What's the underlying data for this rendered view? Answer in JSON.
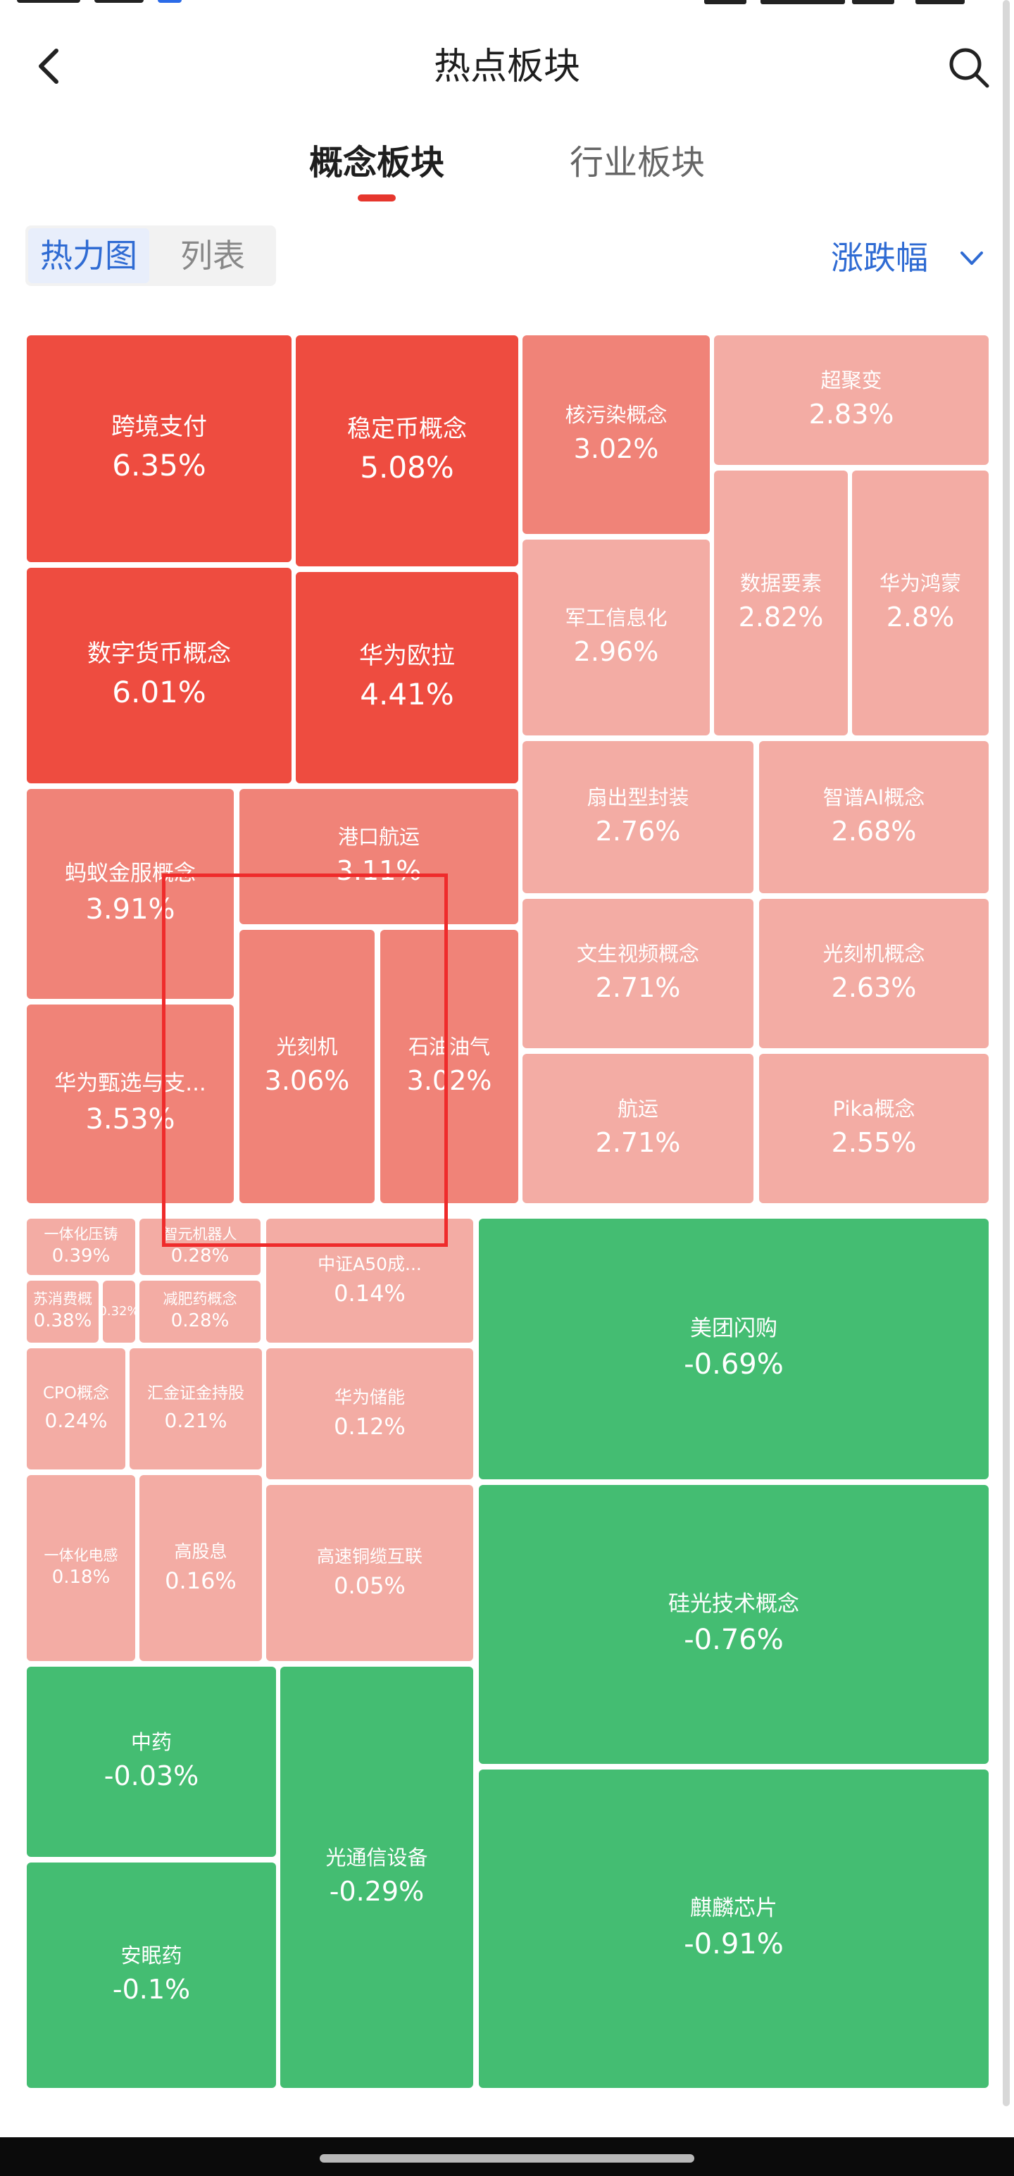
{
  "header": {
    "title": "热点板块",
    "back_icon": "back-arrow-icon",
    "search_icon": "search-icon"
  },
  "tabs": [
    {
      "label": "概念板块",
      "active": true
    },
    {
      "label": "行业板块",
      "active": false
    }
  ],
  "view_toggle": {
    "heatmap_label": "热力图",
    "list_label": "列表",
    "selected": "热力图"
  },
  "sort": {
    "label": "涨跌幅"
  },
  "colors": {
    "strong_up": "#ee4c40",
    "mid_up": "#f08378",
    "light_up": "#f3aca4",
    "down": "#44bd72",
    "accent_blue": "#2f6bd3",
    "tab_indicator": "#e6362d",
    "highlight_box": "#ef2b2b"
  },
  "tiles": [
    {
      "name": "跨境支付",
      "change": "6.35%"
    },
    {
      "name": "稳定币概念",
      "change": "5.08%"
    },
    {
      "name": "核污染概念",
      "change": "3.02%"
    },
    {
      "name": "超聚变",
      "change": "2.83%"
    },
    {
      "name": "军工信息化",
      "change": "2.96%"
    },
    {
      "name": "数据要素",
      "change": "2.82%"
    },
    {
      "name": "华为鸿蒙",
      "change": "2.8%"
    },
    {
      "name": "数字货币概念",
      "change": "6.01%"
    },
    {
      "name": "华为欧拉",
      "change": "4.41%"
    },
    {
      "name": "扇出型封装",
      "change": "2.76%"
    },
    {
      "name": "智谱AI概念",
      "change": "2.68%"
    },
    {
      "name": "蚂蚁金服概念",
      "change": "3.91%"
    },
    {
      "name": "港口航运",
      "change": "3.11%"
    },
    {
      "name": "文生视频概念",
      "change": "2.71%"
    },
    {
      "name": "光刻机概念",
      "change": "2.63%"
    },
    {
      "name": "华为甄选与支...",
      "change": "3.53%"
    },
    {
      "name": "光刻机",
      "change": "3.06%"
    },
    {
      "name": "石油油气",
      "change": "3.02%"
    },
    {
      "name": "航运",
      "change": "2.71%"
    },
    {
      "name": "Pika概念",
      "change": "2.55%"
    },
    {
      "name": "一体化压铸",
      "change": "0.39%"
    },
    {
      "name": "智元机器人",
      "change": "0.28%"
    },
    {
      "name": "苏消费概",
      "change": "0.38%"
    },
    {
      "name": "",
      "change": "0.32%"
    },
    {
      "name": "减肥药概念",
      "change": "0.28%"
    },
    {
      "name": "中证A50成...",
      "change": "0.14%"
    },
    {
      "name": "美团闪购",
      "change": "-0.69%"
    },
    {
      "name": "CPO概念",
      "change": "0.24%"
    },
    {
      "name": "汇金证金持股",
      "change": "0.21%"
    },
    {
      "name": "华为储能",
      "change": "0.12%"
    },
    {
      "name": "一体化电感",
      "change": "0.18%"
    },
    {
      "name": "高股息",
      "change": "0.16%"
    },
    {
      "name": "高速铜缆互联",
      "change": "0.05%"
    },
    {
      "name": "硅光技术概念",
      "change": "-0.76%"
    },
    {
      "name": "中药",
      "change": "-0.03%"
    },
    {
      "name": "光通信设备",
      "change": "-0.29%"
    },
    {
      "name": "麒麟芯片",
      "change": "-0.91%"
    },
    {
      "name": "安眠药",
      "change": "-0.1%"
    }
  ]
}
